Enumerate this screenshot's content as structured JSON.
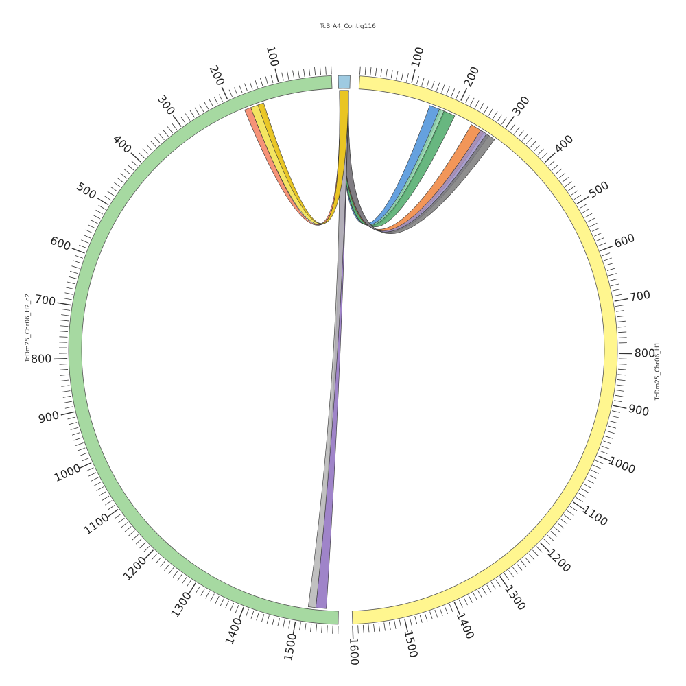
{
  "segments": [
    {
      "name": "TcDm25_Chr06_H1",
      "color": "#fff68f",
      "tick_labels": [
        "100",
        "200",
        "300",
        "400",
        "500",
        "600",
        "700",
        "800",
        "900",
        "1000",
        "1100",
        "1200",
        "1300",
        "1400",
        "1500",
        "1600"
      ]
    },
    {
      "name": "TcDm25_Chr06_H2_c2",
      "color": "#a6d9a1",
      "tick_labels": [
        "100",
        "200",
        "300",
        "400",
        "500",
        "600",
        "700",
        "800",
        "900",
        "1000",
        "1100",
        "1200",
        "1300",
        "1400",
        "1500"
      ]
    },
    {
      "name": "TcBrA4_Contig116",
      "color": "#9ecae1",
      "tick_labels": []
    }
  ],
  "links": [
    {
      "to": "TcDm25_Chr06_H1",
      "start": 147,
      "end": 172,
      "color": "#4a90d9"
    },
    {
      "to": "TcDm25_Chr06_H1",
      "start": 168,
      "end": 180,
      "color": "#8fd4a7"
    },
    {
      "to": "TcDm25_Chr06_H1",
      "start": 178,
      "end": 202,
      "color": "#4eaa6a"
    },
    {
      "to": "TcDm25_Chr06_H1",
      "start": 240,
      "end": 270,
      "color": "#f0843c"
    },
    {
      "to": "TcDm25_Chr06_H1",
      "start": 262,
      "end": 282,
      "color": "#9b8fc7"
    },
    {
      "to": "TcDm25_Chr06_H1",
      "start": 276,
      "end": 296,
      "color": "#7a7a7a"
    },
    {
      "to": "TcDm25_Chr06_H2_c2",
      "start": 1535,
      "end": 1556,
      "color": "#8e6fbf"
    },
    {
      "to": "TcDm25_Chr06_H2_c2",
      "start": 1520,
      "end": 1535,
      "color": "#b5b5b5"
    },
    {
      "to": "TcDm25_Chr06_H2_c2",
      "start": 165,
      "end": 178,
      "color": "#f48060"
    },
    {
      "to": "TcDm25_Chr06_H2_c2",
      "start": 140,
      "end": 165,
      "color": "#f2e045"
    },
    {
      "to": "TcDm25_Chr06_H2_c2",
      "start": 138,
      "end": 150,
      "color": "#e8c21c"
    }
  ]
}
